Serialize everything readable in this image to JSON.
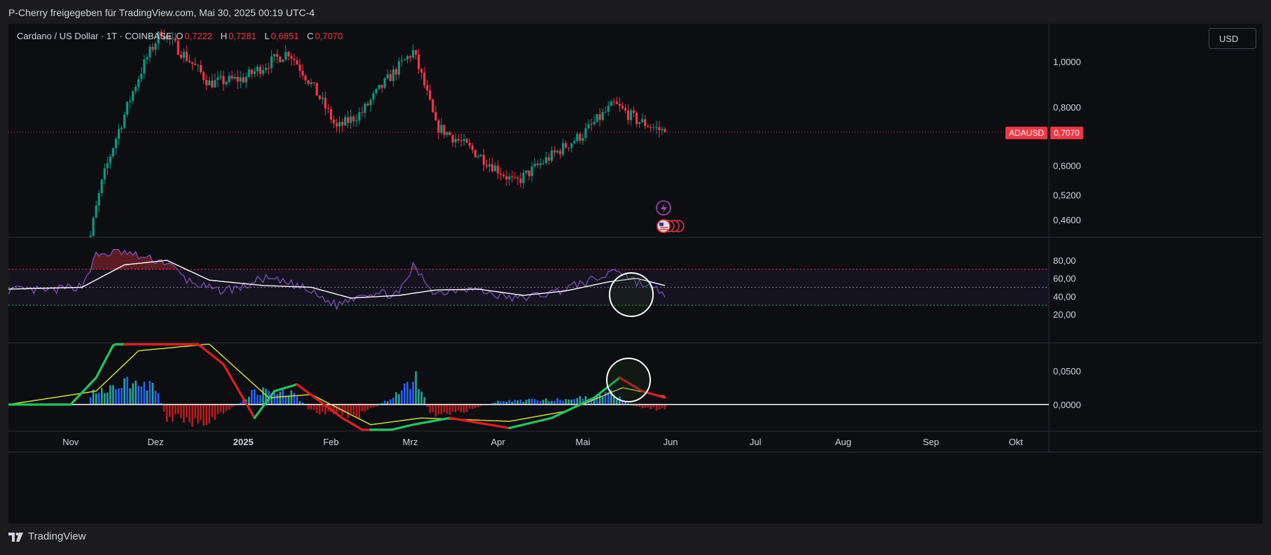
{
  "header": {
    "caption": "P-Cherry freigegeben für TradingView.com, Mai 30, 2025 00:19 UTC-4"
  },
  "legend": {
    "symbol": "Cardano / US Dollar · 1T · COINBASE",
    "o_label": "O",
    "o_value": "0,7222",
    "h_label": "H",
    "h_value": "0,7281",
    "l_label": "L",
    "l_value": "0,6851",
    "c_label": "C",
    "c_value": "0,7070"
  },
  "currency_button": "USD",
  "symbol_tag": "ADAUSD",
  "last_price_tag": "0,7070",
  "footer": {
    "brand": "TradingView"
  },
  "colors": {
    "up": "#089981",
    "down": "#f23645",
    "rsi": "#7e57c2",
    "rsi_ma": "#ffffff",
    "macd_up": "#22c55e",
    "macd_down": "#e11d1d",
    "signal": "#cddc39",
    "hist_pos": "#2962ff",
    "hist_neg": "#b71c1c"
  },
  "chart_data": [
    {
      "type": "candlestick",
      "title": "Cardano / US Dollar · 1T · COINBASE",
      "y_scale": "log",
      "y_ticks": [
        "1,0000",
        "0,8000",
        "0,6000",
        "0,5200",
        "0,4600"
      ],
      "y_tick_values": [
        1.0,
        0.8,
        0.6,
        0.52,
        0.46
      ],
      "x_ticks": [
        "Nov",
        "Dez",
        "2025",
        "Feb",
        "Mrz",
        "Apr",
        "Mai",
        "Jun",
        "Jul",
        "Aug",
        "Sep",
        "Okt"
      ],
      "last_price": 0.707,
      "key_points": [
        {
          "date": "2024-11-05",
          "close": 0.33
        },
        {
          "date": "2024-11-12",
          "close": 0.55
        },
        {
          "date": "2024-11-20",
          "close": 0.77
        },
        {
          "date": "2024-11-28",
          "close": 1.02
        },
        {
          "date": "2024-12-03",
          "close": 1.16
        },
        {
          "date": "2024-12-10",
          "close": 1.05
        },
        {
          "date": "2024-12-20",
          "close": 0.9
        },
        {
          "date": "2025-01-01",
          "close": 0.92
        },
        {
          "date": "2025-01-17",
          "close": 1.05
        },
        {
          "date": "2025-02-03",
          "close": 0.72
        },
        {
          "date": "2025-02-12",
          "close": 0.78
        },
        {
          "date": "2025-03-02",
          "close": 1.05
        },
        {
          "date": "2025-03-10",
          "close": 0.73
        },
        {
          "date": "2025-04-07",
          "close": 0.55
        },
        {
          "date": "2025-04-20",
          "close": 0.63
        },
        {
          "date": "2025-05-01",
          "close": 0.7
        },
        {
          "date": "2025-05-12",
          "close": 0.81
        },
        {
          "date": "2025-05-20",
          "close": 0.75
        },
        {
          "date": "2025-05-30",
          "close": 0.707
        }
      ]
    },
    {
      "type": "line",
      "y_ticks": [
        "80,00",
        "60,00",
        "40,00",
        "20,00"
      ],
      "y_tick_values": [
        80,
        60,
        40,
        20
      ],
      "bands": [
        70,
        50,
        30
      ],
      "series": [
        {
          "values_by_date": [
            [
              "2024-10-10",
              47
            ],
            [
              "2024-10-25",
              46
            ],
            [
              "2024-11-05",
              52
            ],
            [
              "2024-11-10",
              85
            ],
            [
              "2024-11-18",
              90
            ],
            [
              "2024-11-28",
              82
            ],
            [
              "2024-12-05",
              78
            ],
            [
              "2024-12-12",
              58
            ],
            [
              "2024-12-22",
              46
            ],
            [
              "2025-01-01",
              50
            ],
            [
              "2025-01-08",
              60
            ],
            [
              "2025-01-20",
              52
            ],
            [
              "2025-02-03",
              30
            ],
            [
              "2025-02-12",
              44
            ],
            [
              "2025-02-25",
              42
            ],
            [
              "2025-03-02",
              73
            ],
            [
              "2025-03-10",
              43
            ],
            [
              "2025-03-20",
              50
            ],
            [
              "2025-04-07",
              37
            ],
            [
              "2025-04-20",
              44
            ],
            [
              "2025-05-01",
              55
            ],
            [
              "2025-05-09",
              62
            ],
            [
              "2025-05-12",
              72
            ],
            [
              "2025-05-20",
              56
            ],
            [
              "2025-05-30",
              43
            ]
          ]
        },
        {
          "values_by_date": [
            [
              "2024-10-10",
              48
            ],
            [
              "2024-11-05",
              50
            ],
            [
              "2024-11-20",
              75
            ],
            [
              "2024-12-05",
              80
            ],
            [
              "2024-12-20",
              58
            ],
            [
              "2025-01-08",
              52
            ],
            [
              "2025-01-25",
              50
            ],
            [
              "2025-02-08",
              38
            ],
            [
              "2025-02-25",
              41
            ],
            [
              "2025-03-10",
              47
            ],
            [
              "2025-03-25",
              48
            ],
            [
              "2025-04-10",
              41
            ],
            [
              "2025-04-25",
              46
            ],
            [
              "2025-05-10",
              56
            ],
            [
              "2025-05-20",
              60
            ],
            [
              "2025-05-30",
              52
            ]
          ]
        }
      ]
    },
    {
      "type": "bar",
      "y_ticks": [
        "0,0500",
        "0,0000"
      ],
      "y_tick_values": [
        0.05,
        0.0
      ],
      "series": [
        {
          "values_by_date": [
            [
              "2024-10-10",
              0.0
            ],
            [
              "2024-11-01",
              0.0
            ],
            [
              "2024-11-10",
              0.04
            ],
            [
              "2024-11-20",
              0.12
            ],
            [
              "2024-12-10",
              0.11
            ],
            [
              "2024-12-25",
              0.06
            ],
            [
              "2025-01-05",
              -0.02
            ],
            [
              "2025-01-12",
              0.02
            ],
            [
              "2025-01-20",
              0.03
            ],
            [
              "2025-02-05",
              -0.02
            ],
            [
              "2025-02-15",
              -0.045
            ],
            [
              "2025-03-02",
              -0.03
            ],
            [
              "2025-03-15",
              -0.02
            ],
            [
              "2025-04-05",
              -0.035
            ],
            [
              "2025-04-20",
              -0.02
            ],
            [
              "2025-05-05",
              0.01
            ],
            [
              "2025-05-14",
              0.04
            ],
            [
              "2025-05-22",
              0.02
            ],
            [
              "2025-05-30",
              0.01
            ]
          ]
        },
        {
          "values_by_date": [
            [
              "2024-10-10",
              0.0
            ],
            [
              "2024-11-10",
              0.02
            ],
            [
              "2024-11-25",
              0.08
            ],
            [
              "2024-12-20",
              0.09
            ],
            [
              "2025-01-10",
              0.01
            ],
            [
              "2025-01-25",
              0.015
            ],
            [
              "2025-02-15",
              -0.03
            ],
            [
              "2025-03-05",
              -0.02
            ],
            [
              "2025-04-05",
              -0.025
            ],
            [
              "2025-04-25",
              -0.01
            ],
            [
              "2025-05-15",
              0.025
            ],
            [
              "2025-05-30",
              0.012
            ]
          ]
        }
      ],
      "histogram_by_date": [
        [
          "2024-11-10",
          0.018
        ],
        [
          "2024-11-20",
          0.04
        ],
        [
          "2024-12-01",
          0.025
        ],
        [
          "2024-12-05",
          -0.02
        ],
        [
          "2024-12-20",
          -0.03
        ],
        [
          "2025-01-05",
          0.02
        ],
        [
          "2025-01-18",
          0.02
        ],
        [
          "2025-01-25",
          -0.01
        ],
        [
          "2025-02-10",
          -0.02
        ],
        [
          "2025-02-25",
          0.018
        ],
        [
          "2025-03-03",
          0.045
        ],
        [
          "2025-03-08",
          -0.015
        ],
        [
          "2025-03-20",
          -0.01
        ],
        [
          "2025-04-01",
          0.005
        ],
        [
          "2025-04-20",
          0.008
        ],
        [
          "2025-05-05",
          0.012
        ],
        [
          "2025-05-10",
          0.02
        ],
        [
          "2025-05-20",
          -0.005
        ],
        [
          "2025-05-30",
          -0.008
        ]
      ]
    }
  ]
}
